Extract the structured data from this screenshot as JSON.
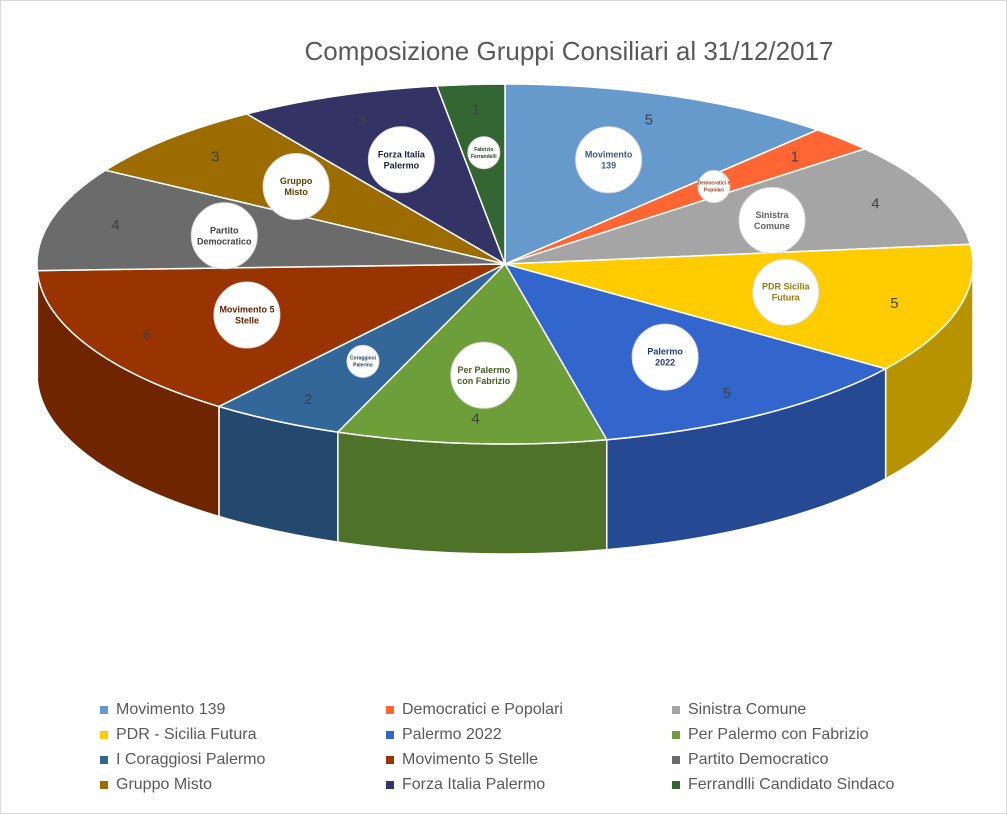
{
  "chart_data": {
    "type": "pie",
    "title": "Composizione Gruppi Consiliari al 31/12/2017",
    "legend_position": "bottom",
    "slices": [
      {
        "name": "Movimento 139",
        "value": 5,
        "color": "#6699CC",
        "logo": "Movimento 139"
      },
      {
        "name": "Democratici e Popolari",
        "value": 1,
        "color": "#FF6633",
        "logo": "Democratici e Popolari"
      },
      {
        "name": "Sinistra Comune",
        "value": 4,
        "color": "#A5A5A5",
        "logo": "Sinistra Comune"
      },
      {
        "name": "PDR - Sicilia Futura",
        "value": 5,
        "color": "#FFCC00",
        "logo": "PDR Sicilia Futura"
      },
      {
        "name": "Palermo 2022",
        "value": 5,
        "color": "#3366CC",
        "logo": "Palermo 2022"
      },
      {
        "name": "Per Palermo con Fabrizio",
        "value": 4,
        "color": "#6E9E3A",
        "logo": "Per Palermo con Fabrizio"
      },
      {
        "name": "I Coraggiosi Palermo",
        "value": 2,
        "color": "#336699",
        "logo": "Coraggiosi Palermo"
      },
      {
        "name": "Movimento 5 Stelle",
        "value": 6,
        "color": "#993300",
        "logo": "Movimento 5 Stelle"
      },
      {
        "name": "Partito Democratico",
        "value": 4,
        "color": "#6B6B6B",
        "logo": "Partito Democratico"
      },
      {
        "name": "Gruppo Misto",
        "value": 3,
        "color": "#9C6C00",
        "logo": "Gruppo Misto"
      },
      {
        "name": "Forza Italia Palermo",
        "value": 3,
        "color": "#333366",
        "logo": "Forza Italia Palermo"
      },
      {
        "name": "Ferrandlli Candidato Sindaco",
        "value": 1,
        "color": "#336633",
        "logo": "Fabrizio Ferrandelli"
      }
    ]
  }
}
